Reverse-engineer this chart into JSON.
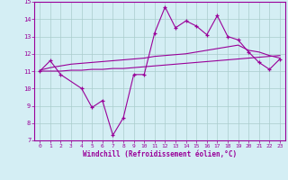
{
  "x": [
    0,
    1,
    2,
    3,
    4,
    5,
    6,
    7,
    8,
    9,
    10,
    11,
    12,
    13,
    14,
    15,
    16,
    17,
    18,
    19,
    20,
    21,
    22,
    23
  ],
  "line_main": [
    11.0,
    11.6,
    10.8,
    null,
    10.0,
    8.9,
    9.3,
    7.3,
    8.3,
    10.8,
    10.8,
    13.2,
    14.7,
    13.5,
    13.9,
    13.6,
    13.1,
    14.2,
    13.0,
    12.8,
    12.1,
    11.5,
    11.1,
    11.7
  ],
  "line_upper": [
    11.05,
    11.2,
    11.3,
    11.4,
    11.45,
    11.5,
    11.55,
    11.6,
    11.65,
    11.7,
    11.75,
    11.85,
    11.9,
    11.95,
    12.0,
    12.1,
    12.2,
    12.3,
    12.4,
    12.5,
    12.2,
    12.1,
    11.9,
    11.75
  ],
  "line_lower": [
    11.0,
    11.0,
    11.0,
    11.05,
    11.05,
    11.1,
    11.1,
    11.15,
    11.15,
    11.2,
    11.25,
    11.3,
    11.35,
    11.4,
    11.45,
    11.5,
    11.55,
    11.6,
    11.65,
    11.7,
    11.75,
    11.8,
    11.85,
    11.9
  ],
  "ylim": [
    7,
    15
  ],
  "xlim": [
    -0.5,
    23.5
  ],
  "yticks": [
    7,
    8,
    9,
    10,
    11,
    12,
    13,
    14,
    15
  ],
  "xticks": [
    0,
    1,
    2,
    3,
    4,
    5,
    6,
    7,
    8,
    9,
    10,
    11,
    12,
    13,
    14,
    15,
    16,
    17,
    18,
    19,
    20,
    21,
    22,
    23
  ],
  "xlabel": "Windchill (Refroidissement éolien,°C)",
  "line_color": "#990099",
  "bg_color": "#d4eef4",
  "grid_color": "#aacccc",
  "axis_color": "#990099",
  "spine_color": "#990099"
}
